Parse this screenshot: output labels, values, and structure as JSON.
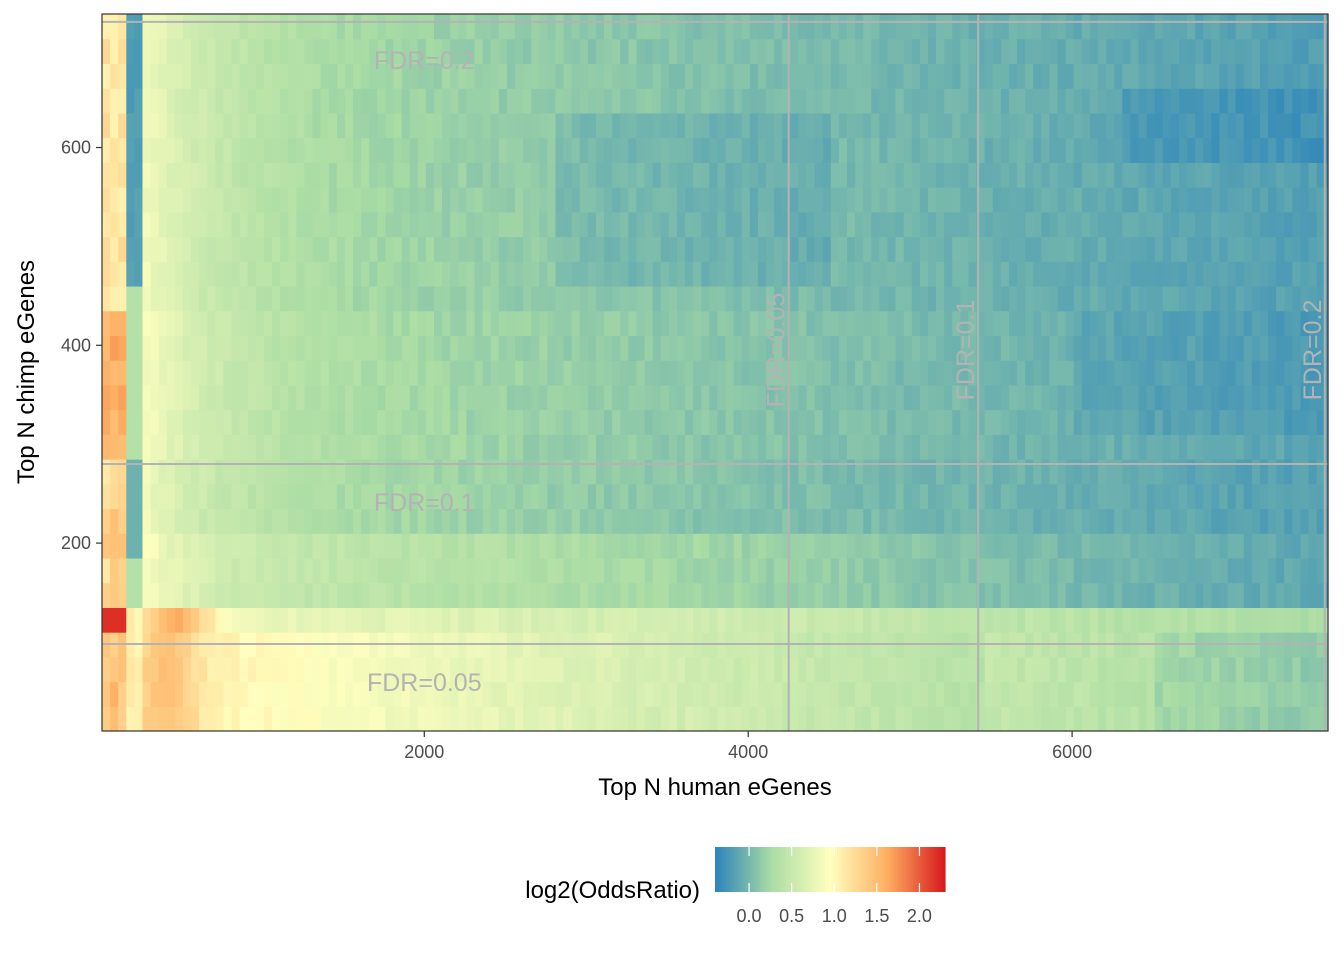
{
  "chart_data": {
    "type": "heatmap",
    "xlabel": "Top N human eGenes",
    "ylabel": "Top N chimp eGenes",
    "xlim": [
      10,
      7580
    ],
    "ylim": [
      10,
      735
    ],
    "x_ticks": [
      2000,
      4000,
      6000
    ],
    "y_ticks": [
      200,
      400,
      600
    ],
    "x_tick_labels": [
      "2000",
      "4000",
      "6000"
    ],
    "y_tick_labels": [
      "200",
      "400",
      "600"
    ],
    "grid": false,
    "colorbar": {
      "title": "log2(OddsRatio)",
      "min": -0.4,
      "max": 2.3,
      "ticks": [
        0.0,
        0.5,
        1.0,
        1.5,
        2.0
      ],
      "tick_labels": [
        "0.0",
        "0.5",
        "1.0",
        "1.5",
        "2.0"
      ],
      "palette": "Spectral (reversed)",
      "colors": [
        "#2b83ba",
        "#abdda4",
        "#ffffbf",
        "#fdae61",
        "#d7191c"
      ],
      "position": "bottom"
    },
    "fdr_lines": {
      "vertical": [
        {
          "label": "FDR=0.05",
          "x": 4250
        },
        {
          "label": "FDR=0.1",
          "x": 5420
        },
        {
          "label": "FDR=0.2",
          "x": 7560
        }
      ],
      "horizontal": [
        {
          "label": "FDR=0.05",
          "y": 98
        },
        {
          "label": "FDR=0.1",
          "y": 280
        },
        {
          "label": "FDR=0.2",
          "y": 727
        }
      ],
      "color": "#b3b3b3"
    },
    "grid_resolution": {
      "x_step": 50,
      "y_step": 25
    }
  }
}
